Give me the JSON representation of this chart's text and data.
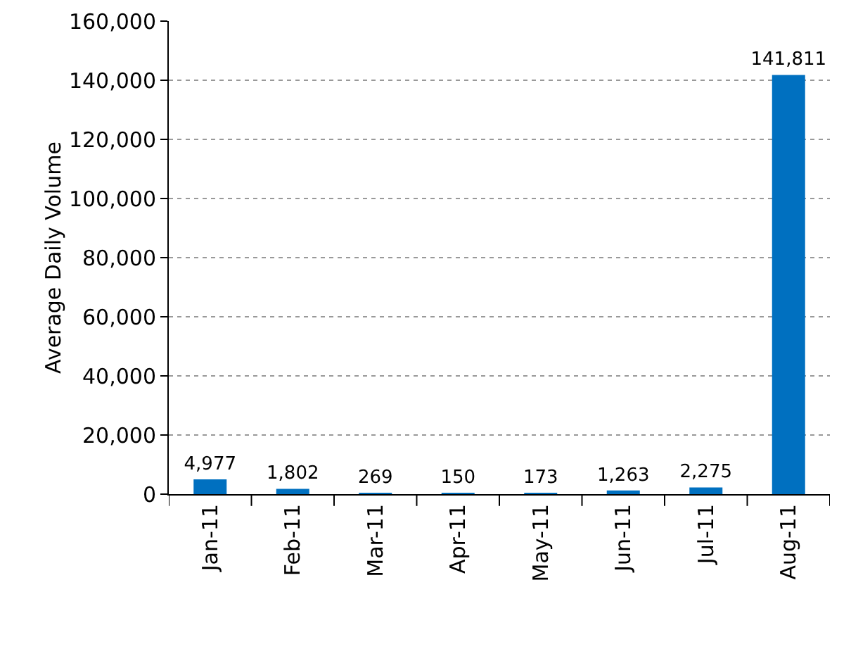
{
  "chart_data": {
    "type": "bar",
    "ylabel": "Average Daily Volume",
    "categories": [
      "Jan-11",
      "Feb-11",
      "Mar-11",
      "Apr-11",
      "May-11",
      "Jun-11",
      "Jul-11",
      "Aug-11"
    ],
    "values": [
      4977,
      1802,
      269,
      150,
      173,
      1263,
      2275,
      141811
    ],
    "color": "#0070c0",
    "ylim": [
      0,
      160000
    ],
    "yticks": [
      0,
      {
        "value": 20000,
        "label": "20,000"
      },
      {
        "value": 40000,
        "label": "40,000"
      },
      {
        "value": 60000,
        "label": "60,000"
      },
      {
        "value": 80000,
        "label": "80,000"
      },
      {
        "value": 100000,
        "label": "100,000"
      },
      {
        "value": 120000,
        "label": "120,000"
      },
      {
        "value": 140000,
        "label": "140,000"
      },
      {
        "value": 160000,
        "label": "160,000"
      }
    ],
    "value_labels": [
      "4,977",
      "1,802",
      "269",
      "150",
      "173",
      "1,263",
      "2,275",
      "141,811"
    ],
    "grid": "y",
    "legend": false
  }
}
